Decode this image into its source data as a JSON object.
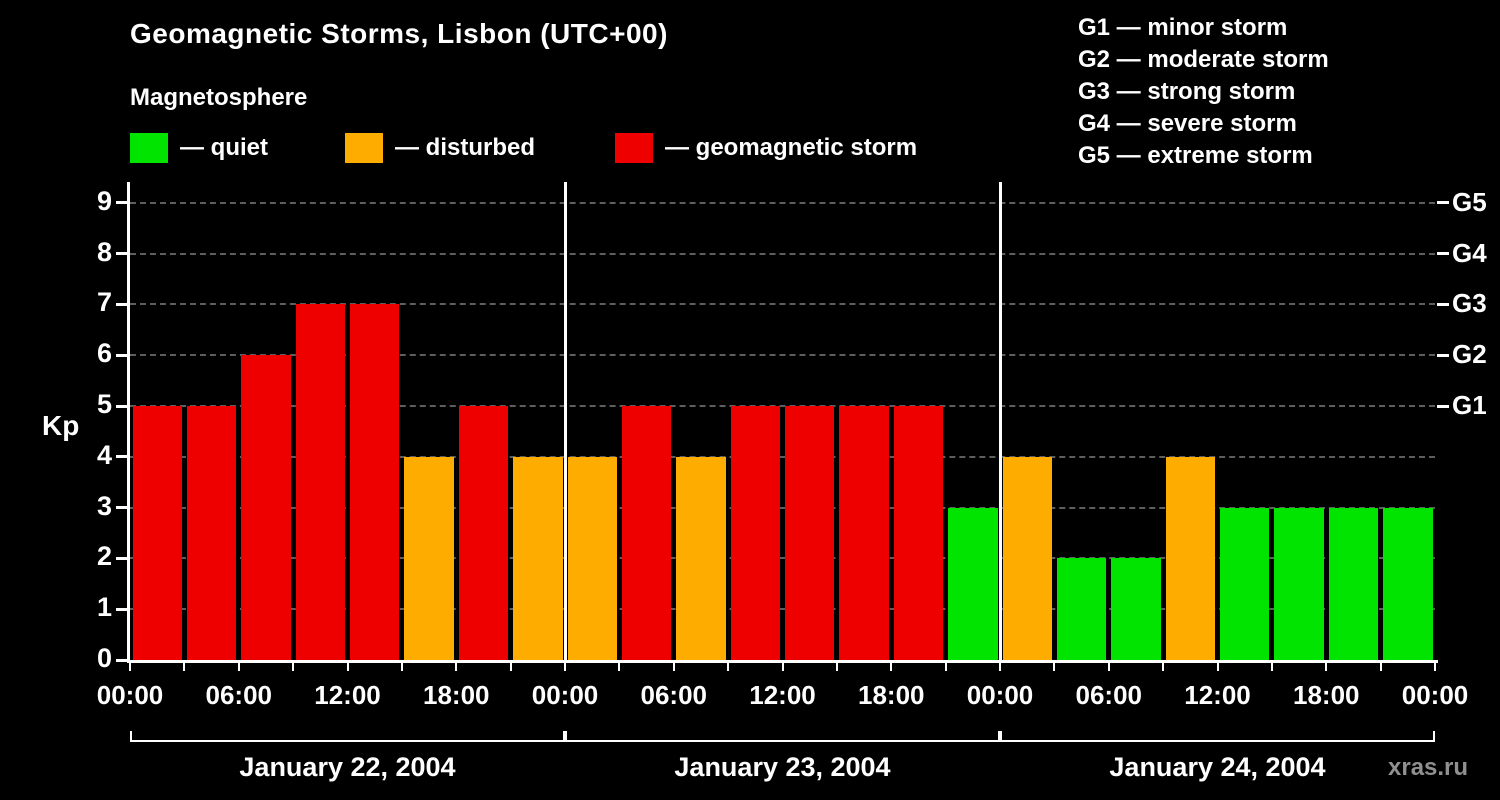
{
  "title": "Geomagnetic Storms, Lisbon (UTC+00)",
  "subtitle": "Magnetosphere",
  "watermark": "xras.ru",
  "legend": [
    {
      "label": "— quiet",
      "color": "#00e400"
    },
    {
      "label": "— disturbed",
      "color": "#ffac00"
    },
    {
      "label": "— geomagnetic storm",
      "color": "#ee0000"
    }
  ],
  "storm_scale": [
    "G1 — minor storm",
    "G2 — moderate storm",
    "G3 — strong storm",
    "G4 — severe storm",
    "G5 — extreme storm"
  ],
  "chart_data": {
    "type": "bar",
    "title": "Geomagnetic Storms, Lisbon (UTC+00)",
    "ylabel": "Kp",
    "ylim": [
      0,
      9
    ],
    "yticks": [
      0,
      1,
      2,
      3,
      4,
      5,
      6,
      7,
      8,
      9
    ],
    "grid": "dashed horizontal at each integer Kp",
    "right_axis": [
      {
        "label": "G1",
        "value": 5
      },
      {
        "label": "G2",
        "value": 6
      },
      {
        "label": "G3",
        "value": 7
      },
      {
        "label": "G4",
        "value": 8
      },
      {
        "label": "G5",
        "value": 9
      }
    ],
    "time_ticks": [
      "00:00",
      "06:00",
      "12:00",
      "18:00"
    ],
    "bar_interval_hours": 3,
    "color_rule": {
      "quiet_green_max": 3,
      "disturbed_orange": 4,
      "storm_red_min": 5
    },
    "colors": {
      "quiet": "#00e400",
      "disturbed": "#ffac00",
      "storm": "#ee0000"
    },
    "days": [
      {
        "date": "January 22, 2004",
        "values": [
          5,
          5,
          6,
          7,
          7,
          4,
          5,
          4
        ]
      },
      {
        "date": "January 23, 2004",
        "values": [
          4,
          5,
          4,
          5,
          5,
          5,
          5,
          3
        ]
      },
      {
        "date": "January 24, 2004",
        "values": [
          4,
          2,
          2,
          4,
          3,
          3,
          3,
          3
        ]
      }
    ]
  }
}
